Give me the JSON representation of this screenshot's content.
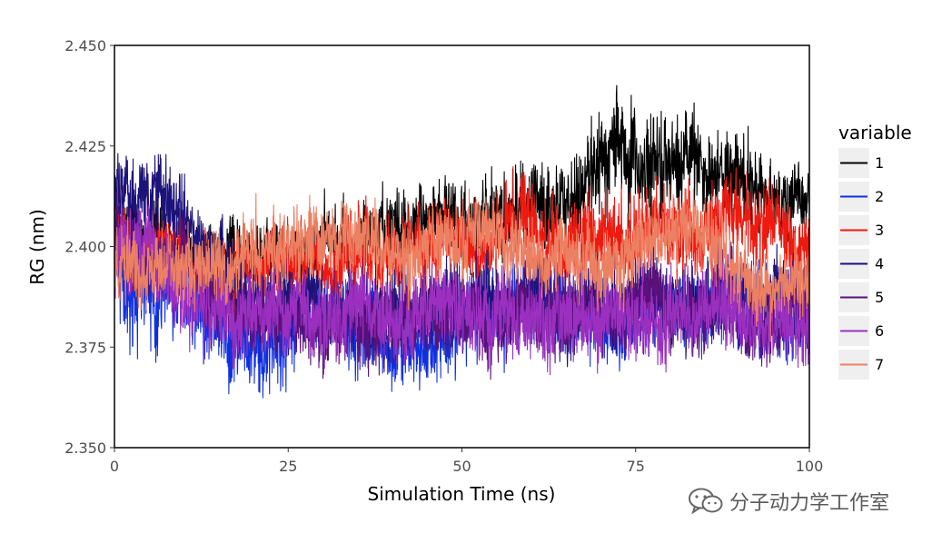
{
  "chart_data": {
    "type": "line",
    "xlabel": "Simulation Time (ns)",
    "ylabel": "RG (nm)",
    "xlim": [
      0,
      100
    ],
    "ylim": [
      2.35,
      2.45
    ],
    "x_ticks": [
      0,
      25,
      50,
      75,
      100
    ],
    "x_tick_labels": [
      "0",
      "25",
      "50",
      "75",
      "100"
    ],
    "y_ticks": [
      2.35,
      2.375,
      2.4,
      2.425,
      2.45
    ],
    "y_tick_labels": [
      "2.350",
      "2.375",
      "2.400",
      "2.425",
      "2.450"
    ],
    "grid": false,
    "legend": {
      "title": "variable",
      "position": "right"
    },
    "series": [
      {
        "name": "1",
        "color": "#000000",
        "x": [
          0,
          5,
          10,
          15,
          20,
          25,
          30,
          35,
          40,
          45,
          50,
          55,
          60,
          65,
          70,
          75,
          80,
          85,
          90,
          95,
          100
        ],
        "mean": [
          2.402,
          2.401,
          2.4,
          2.398,
          2.397,
          2.398,
          2.4,
          2.402,
          2.404,
          2.405,
          2.406,
          2.407,
          2.41,
          2.414,
          2.416,
          2.421,
          2.423,
          2.421,
          2.416,
          2.414,
          2.412
        ],
        "spread": [
          0.008,
          0.008,
          0.007,
          0.007,
          0.007,
          0.007,
          0.007,
          0.007,
          0.008,
          0.008,
          0.009,
          0.009,
          0.009,
          0.01,
          0.01,
          0.011,
          0.011,
          0.01,
          0.009,
          0.008,
          0.008
        ]
      },
      {
        "name": "2",
        "color": "#1030e0",
        "x": [
          0,
          5,
          10,
          15,
          20,
          25,
          30,
          35,
          40,
          45,
          50,
          55,
          60,
          65,
          70,
          75,
          80,
          85,
          90,
          95,
          100
        ],
        "mean": [
          2.398,
          2.386,
          2.387,
          2.378,
          2.374,
          2.379,
          2.384,
          2.381,
          2.377,
          2.374,
          2.382,
          2.384,
          2.384,
          2.382,
          2.382,
          2.384,
          2.384,
          2.387,
          2.386,
          2.384,
          2.384
        ],
        "spread": [
          0.012,
          0.012,
          0.01,
          0.01,
          0.01,
          0.01,
          0.009,
          0.009,
          0.009,
          0.01,
          0.01,
          0.009,
          0.009,
          0.009,
          0.009,
          0.009,
          0.009,
          0.009,
          0.009,
          0.009,
          0.009
        ]
      },
      {
        "name": "3",
        "color": "#ee1a10",
        "x": [
          0,
          5,
          10,
          15,
          20,
          25,
          30,
          35,
          40,
          45,
          50,
          55,
          60,
          65,
          70,
          75,
          80,
          85,
          90,
          95,
          100
        ],
        "mean": [
          2.405,
          2.398,
          2.395,
          2.392,
          2.392,
          2.394,
          2.396,
          2.398,
          2.399,
          2.401,
          2.402,
          2.402,
          2.406,
          2.404,
          2.401,
          2.402,
          2.403,
          2.402,
          2.406,
          2.404,
          2.399
        ],
        "spread": [
          0.009,
          0.008,
          0.008,
          0.008,
          0.008,
          0.008,
          0.008,
          0.008,
          0.008,
          0.008,
          0.009,
          0.009,
          0.01,
          0.01,
          0.009,
          0.009,
          0.009,
          0.009,
          0.01,
          0.009,
          0.009
        ]
      },
      {
        "name": "4",
        "color": "#1c137a",
        "x": [
          0,
          5,
          10,
          15,
          20,
          25,
          30,
          35,
          40,
          45,
          50,
          55,
          60,
          65,
          70,
          75,
          80,
          85,
          90,
          95,
          100
        ],
        "mean": [
          2.413,
          2.412,
          2.408,
          2.396,
          2.388,
          2.385,
          2.384,
          2.384,
          2.383,
          2.383,
          2.387,
          2.386,
          2.385,
          2.384,
          2.384,
          2.386,
          2.385,
          2.384,
          2.385,
          2.384,
          2.384
        ],
        "spread": [
          0.009,
          0.009,
          0.009,
          0.009,
          0.009,
          0.009,
          0.009,
          0.009,
          0.009,
          0.009,
          0.009,
          0.009,
          0.009,
          0.009,
          0.009,
          0.009,
          0.009,
          0.009,
          0.009,
          0.009,
          0.009
        ]
      },
      {
        "name": "5",
        "color": "#5a117a",
        "x": [
          0,
          5,
          10,
          15,
          20,
          25,
          30,
          35,
          40,
          45,
          50,
          55,
          60,
          65,
          70,
          75,
          80,
          85,
          90,
          95,
          100
        ],
        "mean": [
          2.403,
          2.398,
          2.394,
          2.386,
          2.384,
          2.382,
          2.382,
          2.382,
          2.382,
          2.383,
          2.384,
          2.383,
          2.382,
          2.383,
          2.383,
          2.384,
          2.384,
          2.383,
          2.384,
          2.383,
          2.382
        ],
        "spread": [
          0.009,
          0.009,
          0.009,
          0.009,
          0.009,
          0.009,
          0.009,
          0.009,
          0.009,
          0.009,
          0.009,
          0.009,
          0.009,
          0.009,
          0.009,
          0.009,
          0.009,
          0.009,
          0.009,
          0.009,
          0.009
        ]
      },
      {
        "name": "6",
        "color": "#9b30c0",
        "x": [
          0,
          5,
          10,
          15,
          20,
          25,
          30,
          35,
          40,
          45,
          50,
          55,
          60,
          65,
          70,
          75,
          80,
          85,
          90,
          95,
          100
        ],
        "mean": [
          2.401,
          2.395,
          2.39,
          2.385,
          2.383,
          2.382,
          2.381,
          2.382,
          2.383,
          2.384,
          2.386,
          2.384,
          2.383,
          2.382,
          2.383,
          2.384,
          2.383,
          2.383,
          2.382,
          2.381,
          2.38
        ],
        "spread": [
          0.009,
          0.009,
          0.009,
          0.009,
          0.009,
          0.009,
          0.009,
          0.009,
          0.009,
          0.009,
          0.009,
          0.009,
          0.009,
          0.009,
          0.009,
          0.009,
          0.009,
          0.009,
          0.009,
          0.009,
          0.009
        ]
      },
      {
        "name": "7",
        "color": "#ec8062",
        "x": [
          0,
          5,
          10,
          15,
          20,
          25,
          30,
          35,
          40,
          45,
          50,
          55,
          60,
          65,
          70,
          75,
          80,
          85,
          90,
          95,
          100
        ],
        "mean": [
          2.397,
          2.396,
          2.392,
          2.396,
          2.398,
          2.401,
          2.402,
          2.401,
          2.398,
          2.398,
          2.401,
          2.404,
          2.398,
          2.398,
          2.396,
          2.398,
          2.401,
          2.402,
          2.393,
          2.391,
          2.39
        ],
        "spread": [
          0.008,
          0.008,
          0.008,
          0.008,
          0.008,
          0.008,
          0.008,
          0.008,
          0.008,
          0.008,
          0.008,
          0.008,
          0.008,
          0.008,
          0.008,
          0.008,
          0.008,
          0.008,
          0.008,
          0.008,
          0.008
        ]
      }
    ]
  },
  "watermark": {
    "text": "分子动力学工作室",
    "icon": "wechat-icon"
  }
}
